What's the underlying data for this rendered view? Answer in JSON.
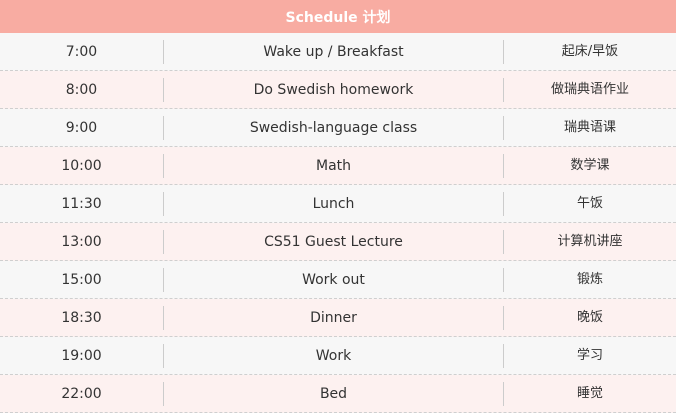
{
  "title": "Schedule 计划",
  "colors": {
    "header": "#f8aca2",
    "row_odd": "#f7f7f7",
    "row_even": "#fdf1f0"
  },
  "rows": [
    {
      "time": "7:00",
      "activity": "Wake up / Breakfast",
      "chinese": "起床/早饭"
    },
    {
      "time": "8:00",
      "activity": "Do Swedish homework",
      "chinese": "做瑞典语作业"
    },
    {
      "time": "9:00",
      "activity": "Swedish-language class",
      "chinese": "瑞典语课"
    },
    {
      "time": "10:00",
      "activity": "Math",
      "chinese": "数学课"
    },
    {
      "time": "11:30",
      "activity": "Lunch",
      "chinese": "午饭"
    },
    {
      "time": "13:00",
      "activity": "CS51 Guest Lecture",
      "chinese": "计算机讲座"
    },
    {
      "time": "15:00",
      "activity": "Work out",
      "chinese": "锻炼"
    },
    {
      "time": "18:30",
      "activity": "Dinner",
      "chinese": "晚饭"
    },
    {
      "time": "19:00",
      "activity": "Work",
      "chinese": "学习"
    },
    {
      "time": "22:00",
      "activity": "Bed",
      "chinese": "睡觉"
    }
  ]
}
